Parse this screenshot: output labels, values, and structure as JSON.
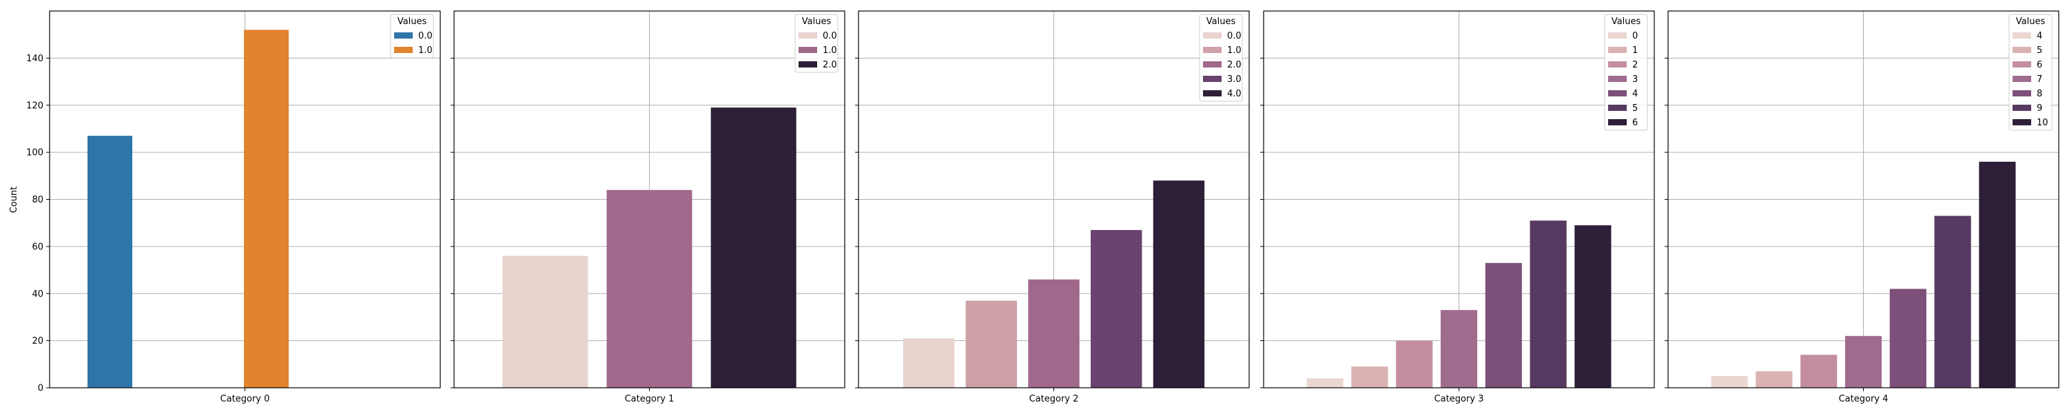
{
  "ylabel": "Count",
  "ylim": [
    0,
    160
  ],
  "yticks": [
    0,
    20,
    40,
    60,
    80,
    100,
    120,
    140
  ],
  "colors": {
    "blue": "#2e75a9",
    "orange": "#e2832d"
  },
  "chart_data": [
    {
      "type": "bar",
      "category": "Category 0",
      "legend_title": "Values",
      "legend_placement": "top-right",
      "grid": true,
      "series": [
        {
          "name": "0.0",
          "value": 107,
          "color": "#2e75a9"
        },
        {
          "name": "1.0",
          "value": 152,
          "color": "#e2832d"
        }
      ]
    },
    {
      "type": "bar",
      "category": "Category 1",
      "legend_title": "Values",
      "legend_placement": "top-right",
      "grid": true,
      "series": [
        {
          "name": "0.0",
          "value": 56,
          "color": "#e8d3cf"
        },
        {
          "name": "1.0",
          "value": 84,
          "color": "#a0688a"
        },
        {
          "name": "2.0",
          "value": 119,
          "color": "#2e1f38"
        }
      ]
    },
    {
      "type": "bar",
      "category": "Category 2",
      "legend_title": "Values",
      "legend_placement": "top-right",
      "grid": true,
      "series": [
        {
          "name": "0.0",
          "value": 21,
          "color": "#e8d3cf"
        },
        {
          "name": "1.0",
          "value": 37,
          "color": "#cfa0a8"
        },
        {
          "name": "2.0",
          "value": 46,
          "color": "#a0688a"
        },
        {
          "name": "3.0",
          "value": 67,
          "color": "#6a4270"
        },
        {
          "name": "4.0",
          "value": 88,
          "color": "#2e1f38"
        }
      ]
    },
    {
      "type": "bar",
      "category": "Category 3",
      "legend_title": "Values",
      "legend_placement": "top-right",
      "grid": true,
      "series": [
        {
          "name": "0",
          "value": 4,
          "color": "#ebd6d0"
        },
        {
          "name": "1",
          "value": 9,
          "color": "#dbb2b2"
        },
        {
          "name": "2",
          "value": 20,
          "color": "#c38f9f"
        },
        {
          "name": "3",
          "value": 33,
          "color": "#a06c8e"
        },
        {
          "name": "4",
          "value": 53,
          "color": "#7c5079"
        },
        {
          "name": "5",
          "value": 71,
          "color": "#573a61"
        },
        {
          "name": "6",
          "value": 69,
          "color": "#2e1f38"
        }
      ]
    },
    {
      "type": "bar",
      "category": "Category 4",
      "legend_title": "Values",
      "legend_placement": "top-right",
      "grid": true,
      "series": [
        {
          "name": "4",
          "value": 5,
          "color": "#ebd6d0"
        },
        {
          "name": "5",
          "value": 7,
          "color": "#dbb2b2"
        },
        {
          "name": "6",
          "value": 14,
          "color": "#c38f9f"
        },
        {
          "name": "7",
          "value": 22,
          "color": "#a06c8e"
        },
        {
          "name": "8",
          "value": 42,
          "color": "#7c5079"
        },
        {
          "name": "9",
          "value": 73,
          "color": "#573a61"
        },
        {
          "name": "10",
          "value": 96,
          "color": "#2e1f38"
        }
      ]
    }
  ]
}
